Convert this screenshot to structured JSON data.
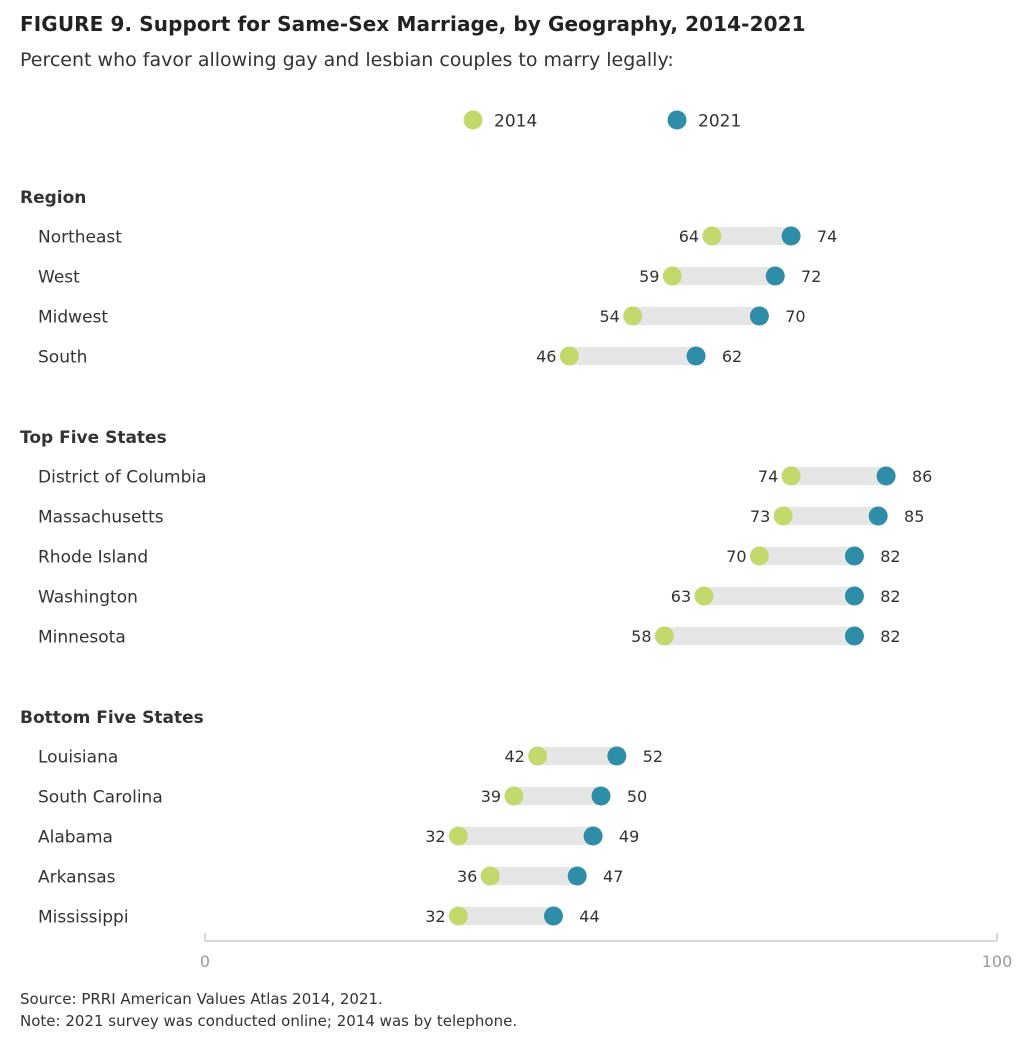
{
  "title": "FIGURE 9.  Support for Same-Sex Marriage, by Geography, 2014-2021",
  "subtitle": "Percent who favor allowing gay and lesbian couples to marry legally:",
  "source": "Source: PRRI American Values Atlas 2014, 2021.",
  "note": "Note: 2021 survey was conducted online; 2014 was by telephone.",
  "colors": {
    "y2014": "#c2d96b",
    "y2021": "#2e8ea8",
    "connector": "#e6e6e6",
    "axis": "#cccccc"
  },
  "chart_data": {
    "type": "dumbbell",
    "legend": [
      "2014",
      "2021"
    ],
    "xlim": [
      0,
      100
    ],
    "xticks": [
      "0",
      "100"
    ],
    "groups": [
      {
        "name": "Region",
        "items": [
          {
            "label": "Northeast",
            "v2014": 64,
            "v2021": 74
          },
          {
            "label": "West",
            "v2014": 59,
            "v2021": 72
          },
          {
            "label": "Midwest",
            "v2014": 54,
            "v2021": 70
          },
          {
            "label": "South",
            "v2014": 46,
            "v2021": 62
          }
        ]
      },
      {
        "name": "Top Five States",
        "items": [
          {
            "label": "District of Columbia",
            "v2014": 74,
            "v2021": 86
          },
          {
            "label": "Massachusetts",
            "v2014": 73,
            "v2021": 85
          },
          {
            "label": "Rhode Island",
            "v2014": 70,
            "v2021": 82
          },
          {
            "label": "Washington",
            "v2014": 63,
            "v2021": 82
          },
          {
            "label": "Minnesota",
            "v2014": 58,
            "v2021": 82
          }
        ]
      },
      {
        "name": "Bottom Five States",
        "items": [
          {
            "label": "Louisiana",
            "v2014": 42,
            "v2021": 52
          },
          {
            "label": "South Carolina",
            "v2014": 39,
            "v2021": 50
          },
          {
            "label": "Alabama",
            "v2014": 32,
            "v2021": 49
          },
          {
            "label": "Arkansas",
            "v2014": 36,
            "v2021": 47
          },
          {
            "label": "Mississippi",
            "v2014": 32,
            "v2021": 44
          }
        ]
      }
    ]
  }
}
